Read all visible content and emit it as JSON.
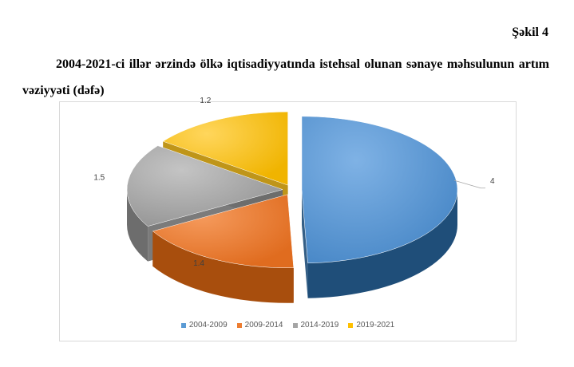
{
  "figure_label": "Şəkil 4",
  "title": "2004-2021-ci illər ərzində ölkə iqtisadiyyatında istehsal olunan sənaye məhsulunun artım vəziyyəti (dəfə)",
  "chart_data": {
    "type": "pie",
    "style": "3d-exploded",
    "categories": [
      "2004-2009",
      "2009-2014",
      "2014-2019",
      "2019-2021"
    ],
    "values": [
      4,
      1.4,
      1.5,
      1.2
    ],
    "data_labels": [
      "4",
      "1.4",
      "1.5",
      "1.2"
    ],
    "colors": [
      "#5b9bd5",
      "#ed7d31",
      "#a5a5a5",
      "#ffc000"
    ],
    "legend_position": "bottom"
  }
}
